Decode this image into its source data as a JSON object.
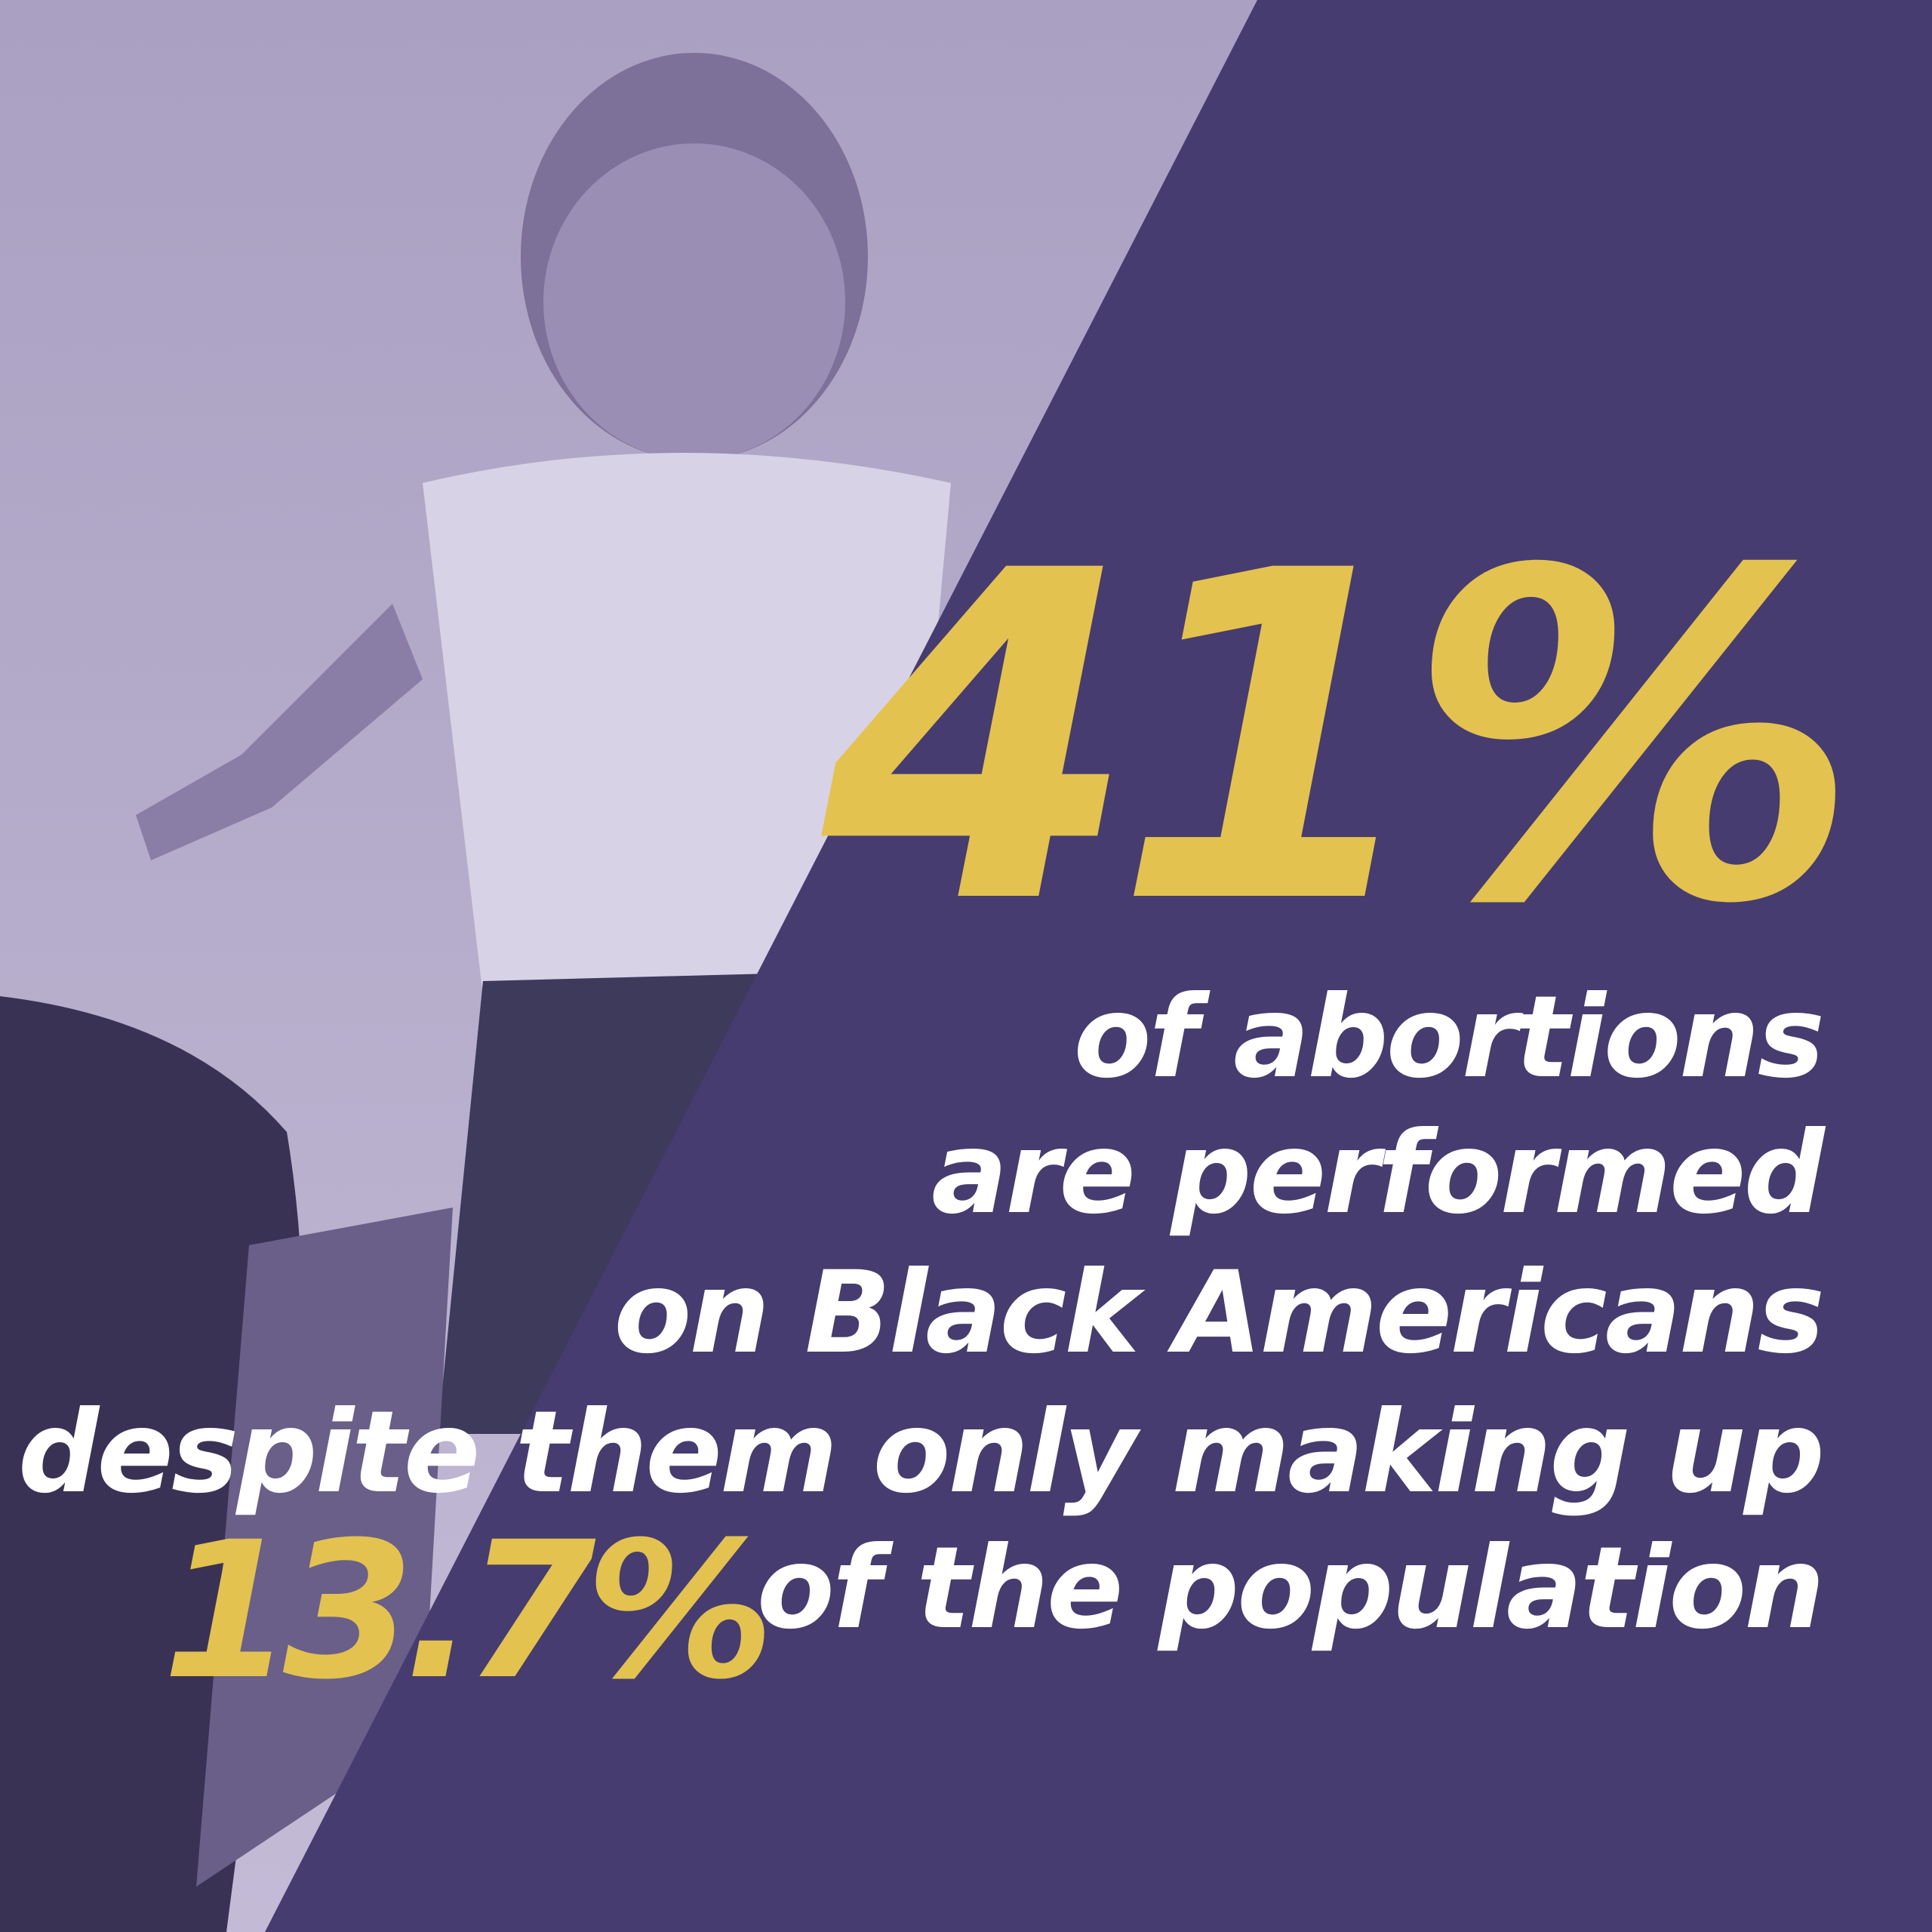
{
  "colors": {
    "panel": "#463c6f",
    "highlight": "#e3c24f",
    "text": "#ffffff",
    "photo_tint": "#b3aac9"
  },
  "headline_stat": "41%",
  "lines": [
    "of abortions",
    "are performed",
    "on Black Americans",
    "despite them only making up",
    "of the population"
  ],
  "population_stat": "13.7%"
}
